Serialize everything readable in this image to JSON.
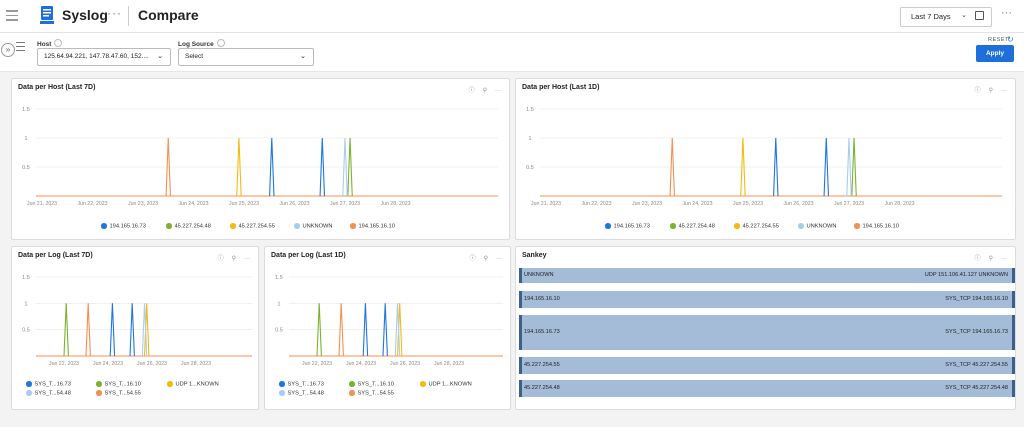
{
  "header": {
    "app_title": "Syslog",
    "page_title": "Compare",
    "title_dots": "···",
    "time_range": "Last 7 Days",
    "more": "···"
  },
  "filters": {
    "host_label": "Host",
    "host_value": "125.64.94.221, 147.78.47.60, 152....",
    "log_source_label": "Log Source",
    "log_source_value": "Select",
    "reset_label": "RESET",
    "apply_label": "Apply"
  },
  "colors": {
    "blue": "#1e77e0",
    "green": "#7bb32e",
    "yellow": "#f2bb12",
    "lightblue": "#a9cdf0",
    "orange": "#f58f52",
    "sankey": "#a4bcd8",
    "accent": "#1e6fd9"
  },
  "panels": {
    "host7d": {
      "title": "Data per Host (Last 7D)"
    },
    "host1d": {
      "title": "Data per Host (Last 1D)"
    },
    "log7d": {
      "title": "Data per Log (Last 7D)"
    },
    "log1d": {
      "title": "Data per Log (Last 1D)"
    },
    "sankey": {
      "title": "Sankey"
    }
  },
  "host_legend": [
    {
      "label": "194.165.16.73",
      "color": "#1e77e0"
    },
    {
      "label": "45.227.254.48",
      "color": "#7bb32e"
    },
    {
      "label": "45.227.254.55",
      "color": "#f2bb12"
    },
    {
      "label": "UNKNOWN",
      "color": "#a9cdf0"
    },
    {
      "label": "194.165.16.10",
      "color": "#f58f52"
    }
  ],
  "log_legend": [
    {
      "label": "SYS_T...16.73",
      "color": "#1e77e0"
    },
    {
      "label": "SYS_T...16.10",
      "color": "#7bb32e"
    },
    {
      "label": "UDP 1...KNOWN",
      "color": "#f2bb12"
    },
    {
      "label": "SYS_T...54.48",
      "color": "#a9cdf0"
    },
    {
      "label": "SYS_T...54.55",
      "color": "#f58f52"
    }
  ],
  "sankey_rows": [
    {
      "source": "UNKNOWN",
      "target": "UDP 151.106.41.127 UNKNOWN"
    },
    {
      "source": "194.165.16.10",
      "target": "SYS_TCP 194.165.16.10"
    },
    {
      "source": "194.165.16.73",
      "target": "SYS_TCP 194.165.16.73"
    },
    {
      "source": "45.227.254.55",
      "target": "SYS_TCP 45.227.254.55"
    },
    {
      "source": "45.227.254.48",
      "target": "SYS_TCP 45.227.254.48"
    }
  ],
  "chart_data": [
    {
      "type": "line",
      "title": "Data per Host (Last 7D)",
      "x": [
        "Jun 21, 2023",
        "Jun 22, 2023",
        "Jun 23, 2023",
        "Jun 24, 2023",
        "Jun 25, 2023",
        "Jun 26, 2023",
        "Jun 27, 2023",
        "Jun 28, 2023"
      ],
      "yticks": [
        "1.5",
        "1",
        "0.5"
      ],
      "ylim": [
        0,
        1.5
      ],
      "series": [
        {
          "name": "194.165.16.73",
          "color": "#1e77e0",
          "spikes": [
            {
              "x": 4.55,
              "y": 1
            },
            {
              "x": 5.55,
              "y": 1
            }
          ]
        },
        {
          "name": "45.227.254.48",
          "color": "#7bb32e",
          "spikes": [
            {
              "x": 6.1,
              "y": 1
            }
          ]
        },
        {
          "name": "45.227.254.55",
          "color": "#f2bb12",
          "spikes": [
            {
              "x": 3.9,
              "y": 1
            }
          ]
        },
        {
          "name": "UNKNOWN",
          "color": "#a9cdf0",
          "spikes": [
            {
              "x": 6.0,
              "y": 1
            }
          ]
        },
        {
          "name": "194.165.16.10",
          "color": "#f58f52",
          "spikes": [
            {
              "x": 2.5,
              "y": 1
            }
          ]
        }
      ]
    },
    {
      "type": "line",
      "title": "Data per Host (Last 1D)",
      "x": [
        "Jun 21, 2023",
        "Jun 22, 2023",
        "Jun 23, 2023",
        "Jun 24, 2023",
        "Jun 25, 2023",
        "Jun 26, 2023",
        "Jun 27, 2023",
        "Jun 28, 2023"
      ],
      "yticks": [
        "1.5",
        "1",
        "0.5"
      ],
      "ylim": [
        0,
        1.5
      ],
      "series": [
        {
          "name": "194.165.16.73",
          "color": "#1e77e0",
          "spikes": [
            {
              "x": 4.55,
              "y": 1
            },
            {
              "x": 5.55,
              "y": 1
            }
          ]
        },
        {
          "name": "45.227.254.48",
          "color": "#7bb32e",
          "spikes": [
            {
              "x": 6.1,
              "y": 1
            }
          ]
        },
        {
          "name": "45.227.254.55",
          "color": "#f2bb12",
          "spikes": [
            {
              "x": 3.9,
              "y": 1
            }
          ]
        },
        {
          "name": "UNKNOWN",
          "color": "#a9cdf0",
          "spikes": [
            {
              "x": 6.0,
              "y": 1
            }
          ]
        },
        {
          "name": "194.165.16.10",
          "color": "#f58f52",
          "spikes": [
            {
              "x": 2.5,
              "y": 1
            }
          ]
        }
      ]
    },
    {
      "type": "line",
      "title": "Data per Log (Last 7D)",
      "x": [
        "Jun 22, 2023",
        "Jun 24, 2023",
        "Jun 26, 2023",
        "Jun 28, 2023"
      ],
      "yticks": [
        "1.5",
        "1",
        "0.5"
      ],
      "ylim": [
        0,
        1.5
      ],
      "series": [
        {
          "name": "SYS_T...16.73",
          "color": "#1e77e0",
          "spikes": [
            {
              "x": 1.1,
              "y": 1
            },
            {
              "x": 1.55,
              "y": 1
            }
          ]
        },
        {
          "name": "SYS_T...16.10",
          "color": "#7bb32e",
          "spikes": [
            {
              "x": 0.05,
              "y": 1
            }
          ]
        },
        {
          "name": "UDP 1...KNOWN",
          "color": "#f2bb12",
          "spikes": [
            {
              "x": 1.88,
              "y": 1
            }
          ]
        },
        {
          "name": "SYS_T...54.48",
          "color": "#a9cdf0",
          "spikes": [
            {
              "x": 1.83,
              "y": 1
            }
          ]
        },
        {
          "name": "SYS_T...54.55",
          "color": "#f58f52",
          "spikes": [
            {
              "x": 0.55,
              "y": 1
            }
          ]
        }
      ]
    },
    {
      "type": "line",
      "title": "Data per Log (Last 1D)",
      "x": [
        "Jun 22, 2023",
        "Jun 24, 2023",
        "Jun 26, 2023",
        "Jun 28, 2023"
      ],
      "yticks": [
        "1.5",
        "1",
        "0.5"
      ],
      "ylim": [
        0,
        1.5
      ],
      "series": [
        {
          "name": "SYS_T...16.73",
          "color": "#1e77e0",
          "spikes": [
            {
              "x": 1.1,
              "y": 1
            },
            {
              "x": 1.55,
              "y": 1
            }
          ]
        },
        {
          "name": "SYS_T...16.10",
          "color": "#7bb32e",
          "spikes": [
            {
              "x": 0.05,
              "y": 1
            }
          ]
        },
        {
          "name": "UDP 1...KNOWN",
          "color": "#f2bb12",
          "spikes": [
            {
              "x": 1.88,
              "y": 1
            }
          ]
        },
        {
          "name": "SYS_T...54.48",
          "color": "#a9cdf0",
          "spikes": [
            {
              "x": 1.83,
              "y": 1
            }
          ]
        },
        {
          "name": "SYS_T...54.55",
          "color": "#f58f52",
          "spikes": [
            {
              "x": 0.55,
              "y": 1
            }
          ]
        }
      ]
    }
  ]
}
